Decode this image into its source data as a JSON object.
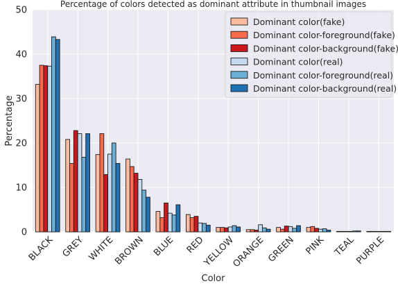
{
  "chart_data": {
    "type": "bar",
    "title": "Percentage of colors detected as dominant attribute in thumbnail images",
    "xlabel": "Color",
    "ylabel": "Percentage",
    "ylim": [
      0,
      50
    ],
    "yticks": [
      0,
      10,
      20,
      30,
      40,
      50
    ],
    "grid": true,
    "legend_position": "top-right",
    "categories": [
      "BLACK",
      "GREY",
      "WHITE",
      "BROWN",
      "BLUE",
      "RED",
      "YELLOW",
      "ORANGE",
      "GREEN",
      "PINK",
      "TEAL",
      "PURPLE"
    ],
    "series": [
      {
        "name": "Dominant color(fake)",
        "color": "#fcbba1",
        "values": [
          33.2,
          20.8,
          17.4,
          16.4,
          4.6,
          3.9,
          1.0,
          0.5,
          1.0,
          1.0,
          0.1,
          0.1
        ]
      },
      {
        "name": "Dominant color-foreground(fake)",
        "color": "#fb6a4a",
        "values": [
          37.5,
          15.4,
          22.1,
          14.7,
          3.2,
          3.2,
          1.0,
          0.5,
          0.6,
          1.2,
          0.1,
          0.1
        ]
      },
      {
        "name": "Dominant color-background(fake)",
        "color": "#cb181d",
        "values": [
          37.4,
          22.8,
          12.9,
          13.2,
          6.5,
          3.5,
          0.9,
          0.4,
          1.3,
          0.8,
          0.1,
          0.1
        ]
      },
      {
        "name": "Dominant color(real)",
        "color": "#c6dbef",
        "values": [
          37.3,
          22.1,
          17.5,
          11.8,
          4.2,
          2.0,
          1.1,
          1.6,
          1.2,
          0.6,
          0.1,
          0.1
        ]
      },
      {
        "name": "Dominant color-foreground(real)",
        "color": "#6baed6",
        "values": [
          43.9,
          16.8,
          20.0,
          9.4,
          3.8,
          1.9,
          1.4,
          0.9,
          0.8,
          0.7,
          0.2,
          0.1
        ]
      },
      {
        "name": "Dominant color-background(real)",
        "color": "#2171b5",
        "values": [
          43.3,
          22.1,
          15.4,
          7.8,
          6.1,
          1.5,
          1.1,
          0.6,
          1.4,
          0.4,
          0.2,
          0.1
        ]
      }
    ]
  }
}
